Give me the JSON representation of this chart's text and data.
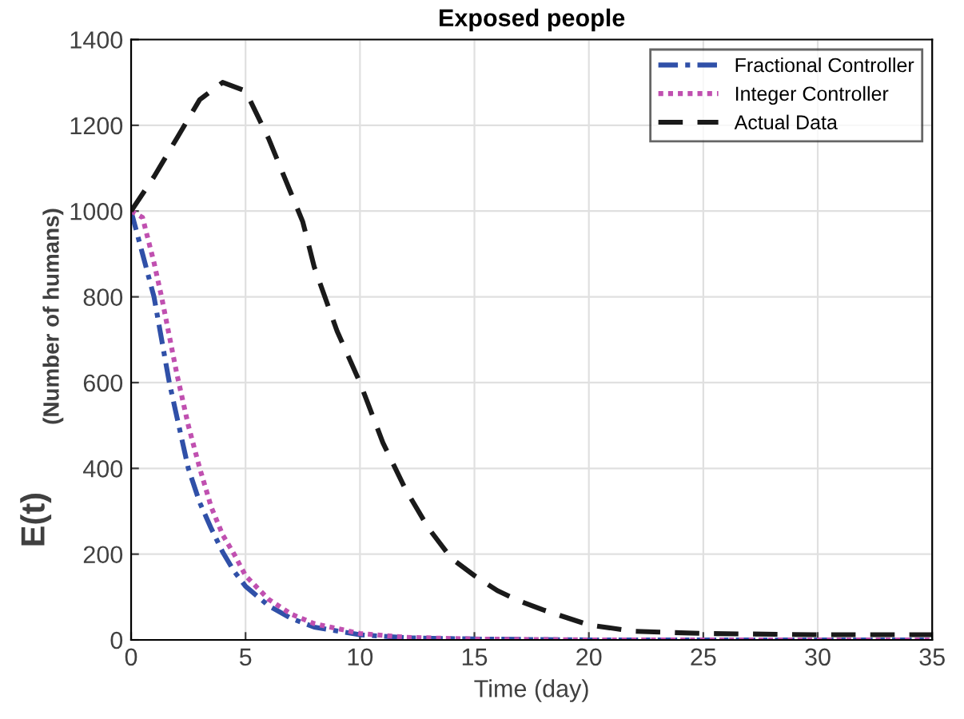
{
  "chart_data": {
    "type": "line",
    "title": "Exposed people",
    "xlabel": "Time (day)",
    "ylabel": "E(t)",
    "annotations": [
      "(Number of humans)"
    ],
    "xlim": [
      0,
      35
    ],
    "xticks": [
      0,
      5,
      10,
      15,
      20,
      25,
      30,
      35
    ],
    "ylim": [
      0,
      1400
    ],
    "yticks": [
      0,
      200,
      400,
      600,
      800,
      1000,
      1200,
      1400
    ],
    "grid": true,
    "legend": "top right",
    "marker": "none",
    "series": [
      {
        "name": "Fractional Controller",
        "color": "#3050a8",
        "line_style": "dashdot",
        "x": [
          0,
          0.5,
          1,
          1.67,
          2,
          2.5,
          3,
          3.5,
          4,
          4.5,
          5,
          6,
          7,
          8,
          10,
          12,
          15,
          20,
          35
        ],
        "values": [
          1000,
          900,
          800,
          600,
          520,
          400,
          320,
          260,
          205,
          160,
          125,
          80,
          50,
          30,
          12,
          5,
          2,
          0,
          0
        ]
      },
      {
        "name": "Integer Controller",
        "color": "#c050b0",
        "line_style": "dotted",
        "x": [
          0,
          0.5,
          1,
          1.33,
          2,
          2.5,
          3,
          3.5,
          4,
          4.5,
          5,
          6,
          7,
          8,
          10,
          12,
          15,
          20,
          35
        ],
        "values": [
          1000,
          985,
          880,
          800,
          620,
          500,
          400,
          310,
          245,
          200,
          150,
          95,
          60,
          38,
          15,
          6,
          2,
          0,
          0
        ]
      },
      {
        "name": "Actual Data",
        "color": "#1a1a1a",
        "line_style": "dashed",
        "x": [
          0,
          1,
          2,
          3,
          4,
          5,
          6,
          7,
          7.5,
          8,
          9,
          10,
          11,
          12,
          13,
          14,
          15,
          16,
          17,
          18,
          20,
          22,
          25,
          30,
          35
        ],
        "values": [
          1000,
          1080,
          1170,
          1260,
          1300,
          1280,
          1170,
          1040,
          975,
          870,
          720,
          600,
          460,
          350,
          260,
          190,
          150,
          115,
          90,
          70,
          35,
          20,
          15,
          12,
          12
        ]
      }
    ]
  }
}
